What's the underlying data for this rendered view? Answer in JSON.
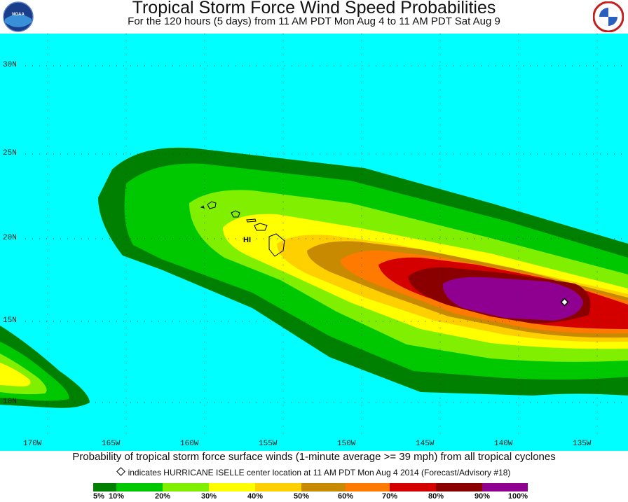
{
  "title": "Tropical Storm Force Wind Speed Probabilities",
  "subtitle": "For the 120 hours (5 days) from 11 AM PDT Mon Aug 4 to 11 AM PDT Sat Aug 9",
  "logos": {
    "left": "NOAA",
    "right": "NATIONAL WEATHER SERVICE"
  },
  "map": {
    "ocean_color": "#00ffff",
    "latitude_labels": [
      "30N",
      "25N",
      "20N",
      "15N",
      "10N"
    ],
    "longitude_labels": [
      "170W",
      "165W",
      "160W",
      "155W",
      "150W",
      "145W",
      "140W",
      "135W"
    ],
    "region_label": "HI",
    "storm_marker": "diamond"
  },
  "caption": "Probability of tropical storm force surface winds (1-minute average >= 39 mph) from all tropical cyclones",
  "storm_note": "indicates HURRICANE ISELLE center location at 11 AM PDT Mon Aug 4 2014 (Forecast/Advisory #18)",
  "legend": {
    "colors": [
      "#008000",
      "#00c800",
      "#80f000",
      "#ffff00",
      "#ffd000",
      "#c88a00",
      "#ff7a00",
      "#d40000",
      "#8a0000",
      "#900090"
    ],
    "labels": [
      "5%",
      "10%",
      "20%",
      "30%",
      "40%",
      "50%",
      "60%",
      "70%",
      "80%",
      "90%",
      "100%"
    ]
  }
}
